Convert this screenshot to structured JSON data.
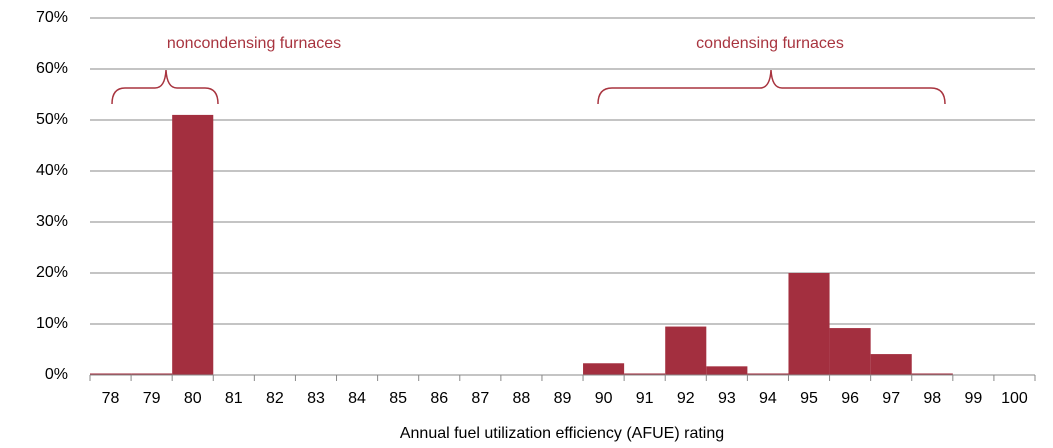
{
  "chart_data": {
    "type": "bar",
    "xlabel": "Annual fuel utilization efficiency (AFUE) rating",
    "annotations": [
      "noncondensing furnaces",
      "condensing furnaces"
    ],
    "categories": [
      "78",
      "79",
      "80",
      "81",
      "82",
      "83",
      "84",
      "85",
      "86",
      "87",
      "88",
      "89",
      "90",
      "91",
      "92",
      "93",
      "94",
      "95",
      "96",
      "97",
      "98",
      "99",
      "100"
    ],
    "values": [
      0.3,
      0.3,
      51,
      0,
      0,
      0,
      0,
      0,
      0,
      0,
      0,
      0,
      2.3,
      0.3,
      9.5,
      1.7,
      0.3,
      20,
      9.2,
      4.1,
      0.3,
      0,
      0
    ],
    "color": "#a32f3f",
    "ylim": [
      0,
      70
    ],
    "yticks": [
      {
        "value": 0,
        "label": "0%"
      },
      {
        "value": 10,
        "label": "10%"
      },
      {
        "value": 20,
        "label": "20%"
      },
      {
        "value": 30,
        "label": "30%"
      },
      {
        "value": 40,
        "label": "40%"
      },
      {
        "value": 50,
        "label": "50%"
      },
      {
        "value": 60,
        "label": "60%"
      },
      {
        "value": 70,
        "label": "70%"
      }
    ],
    "grid": true
  }
}
